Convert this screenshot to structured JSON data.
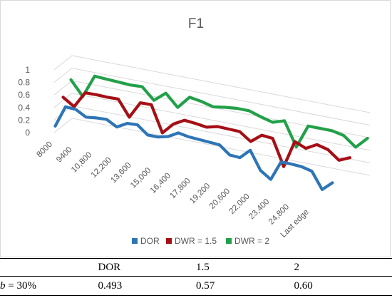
{
  "chart_data": {
    "type": "line",
    "title": "F1",
    "view": "3d",
    "yticks": [
      "0",
      "0.2",
      "0.4",
      "0.6",
      "0.8",
      "1"
    ],
    "ylim": [
      0,
      1
    ],
    "x_tick_labels": [
      "8000",
      "9400",
      "10,800",
      "12,200",
      "13,600",
      "15,000",
      "16,400",
      "17,800",
      "19,200",
      "20,600",
      "22,000",
      "23,400",
      "24,800",
      "Last edge"
    ],
    "legend_position": "bottom",
    "series": [
      {
        "name": "DOR",
        "color": "#2e75b6",
        "values": [
          0.09,
          0.44,
          0.44,
          0.36,
          0.39,
          0.41,
          0.33,
          0.43,
          0.45,
          0.33,
          0.34,
          0.39,
          0.49,
          0.47,
          0.47,
          0.47,
          0.47,
          0.35,
          0.35,
          0.51,
          0.23,
          0.13,
          0.45,
          0.46,
          0.46,
          0.43,
          0.18,
          0.33
        ]
      },
      {
        "name": "DWR = 1.5",
        "color": "#a50f15",
        "values": [
          0.45,
          0.34,
          0.6,
          0.61,
          0.61,
          0.62,
          0.37,
          0.64,
          0.65,
          0.24,
          0.42,
          0.52,
          0.51,
          0.49,
          0.54,
          0.54,
          0.54,
          0.42,
          0.56,
          0.55,
          0.14,
          0.58,
          0.51,
          0.61,
          0.57,
          0.44,
          0.52
        ]
      },
      {
        "name": "DWR = 2",
        "color": "#23a04a",
        "values": [
          0.63,
          0.4,
          0.76,
          0.75,
          0.74,
          0.73,
          0.74,
          0.56,
          0.71,
          0.52,
          0.72,
          0.69,
          0.64,
          0.67,
          0.69,
          0.69,
          0.63,
          0.58,
          0.64,
          0.26,
          0.63,
          0.63,
          0.63,
          0.59,
          0.44,
          0.62
        ]
      }
    ]
  },
  "table": {
    "header": [
      "",
      "DOR",
      "1.5",
      "2"
    ],
    "row_label_var": "b",
    "row_label_rest": " = 30%",
    "row_values": [
      "0.493",
      "0.57",
      "0.60"
    ]
  }
}
